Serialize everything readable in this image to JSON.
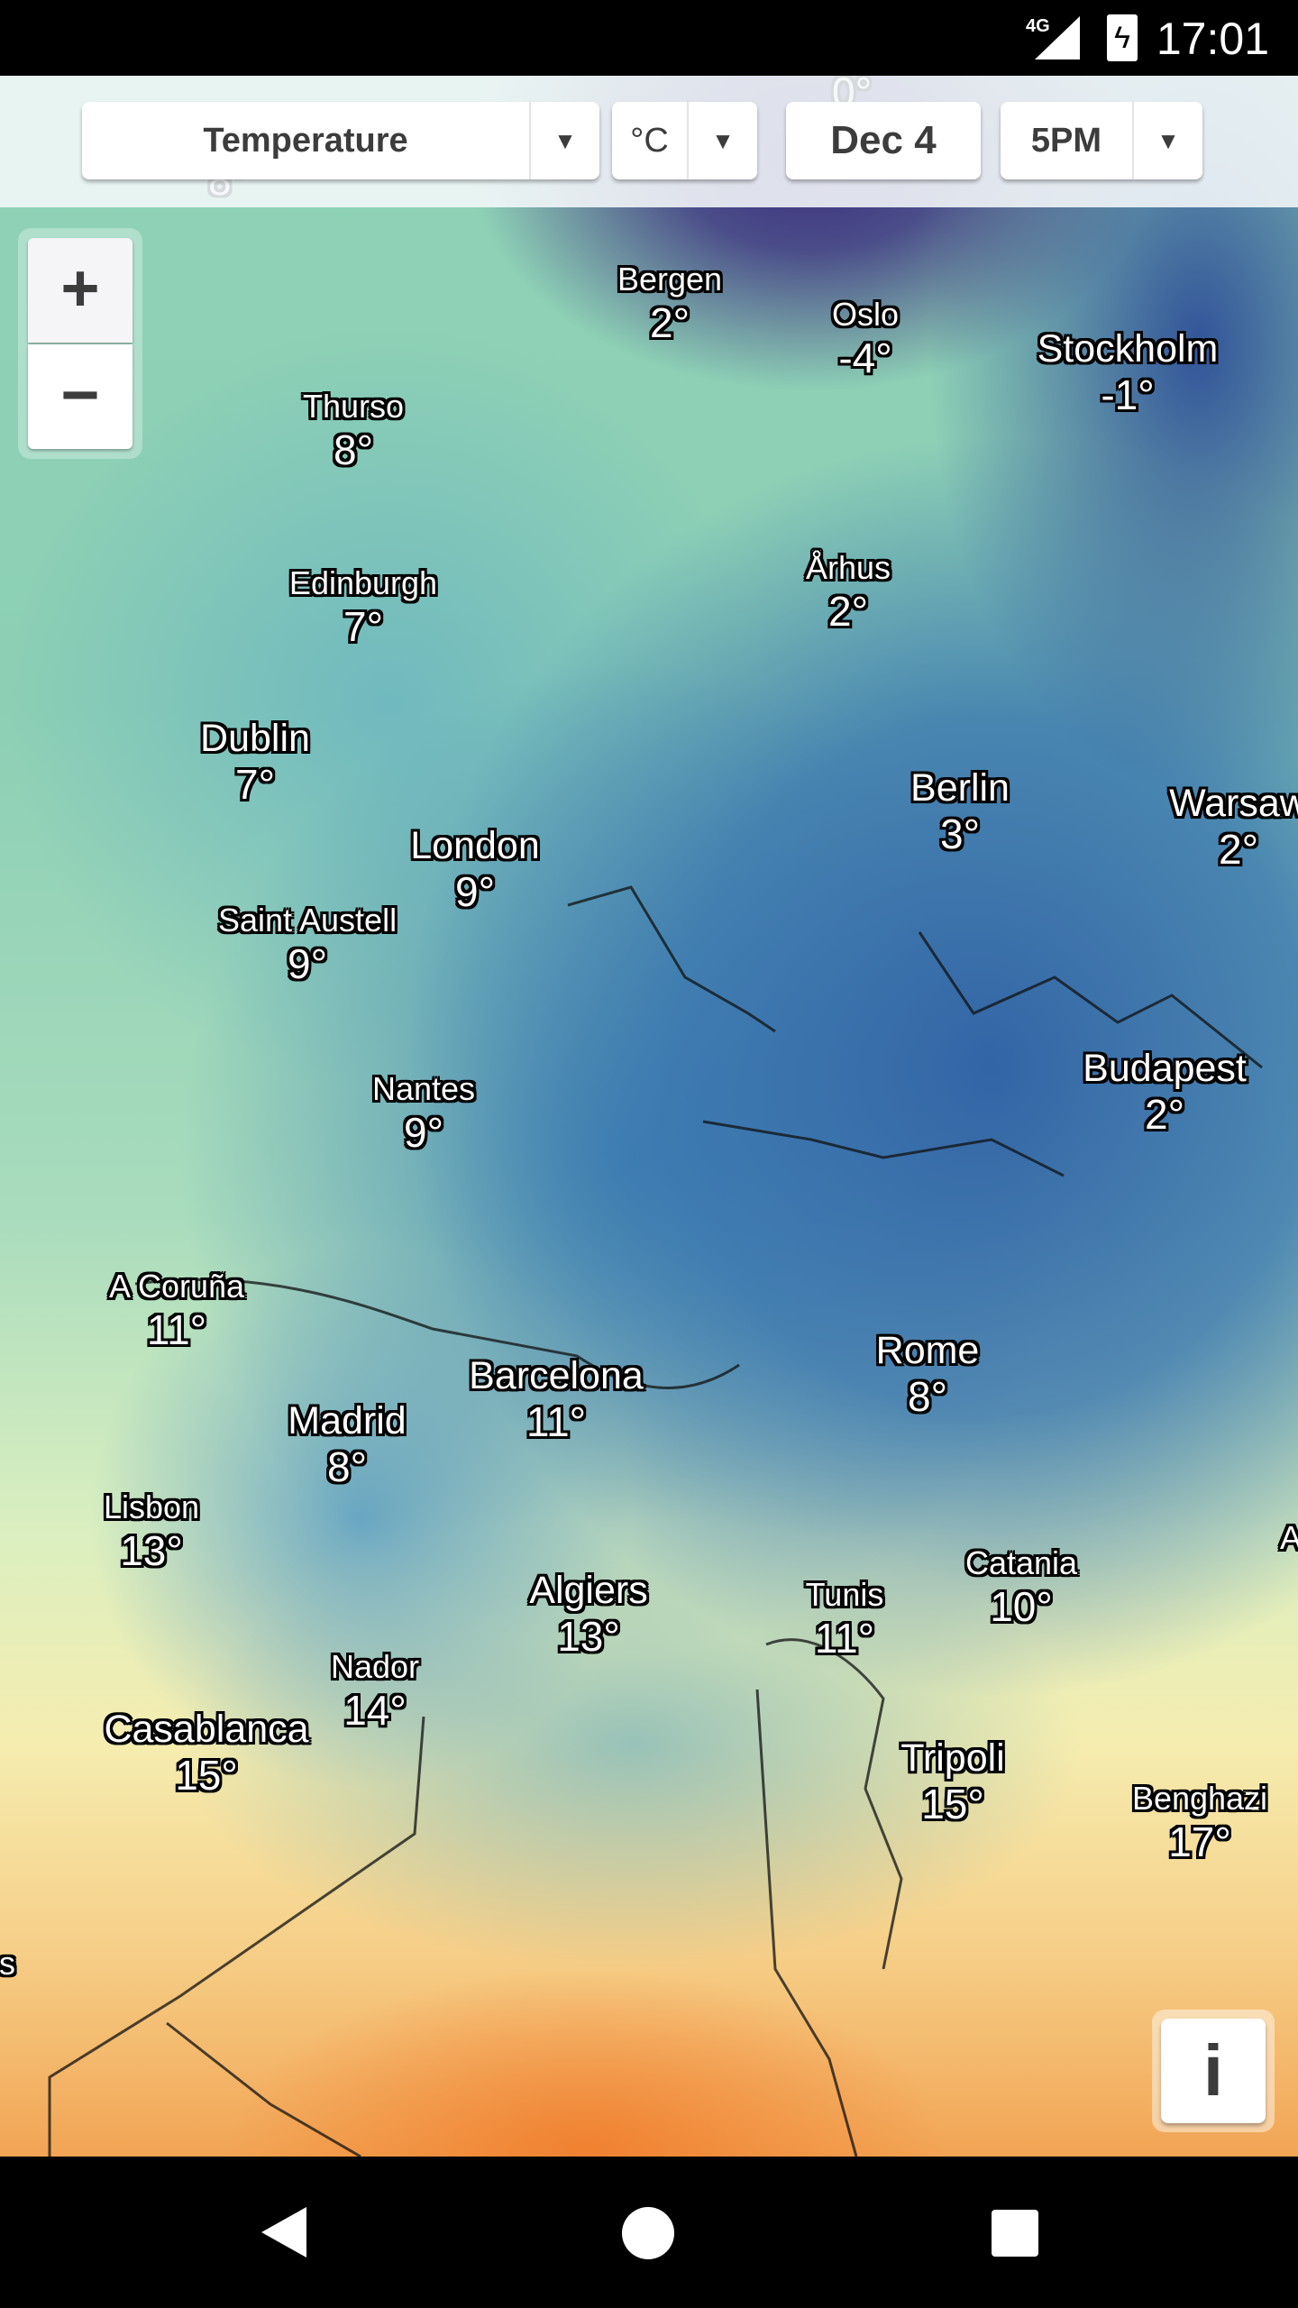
{
  "status_bar": {
    "network": "4G",
    "time": "17:01",
    "icons": [
      "signal-icon",
      "battery-charging-icon"
    ]
  },
  "toolbar": {
    "layer": "Temperature",
    "unit": "°C",
    "date": "Dec 4",
    "time": "5PM"
  },
  "zoom": {
    "in": "+",
    "out": "−"
  },
  "info_button": "i",
  "colors": {
    "cold": "#3a2c7e",
    "mid": "#3d7fb8",
    "mild": "#8fd2b6",
    "warm": "#f5edb0",
    "hot": "#f2a454"
  },
  "labels": [
    {
      "name": "",
      "temp": "0°"
    },
    {
      "name": "",
      "temp": "8°"
    },
    {
      "name": "Bergen",
      "temp": "2°"
    },
    {
      "name": "Oslo",
      "temp": "-4°"
    },
    {
      "name": "Stockholm",
      "temp": "-1°"
    },
    {
      "name": "Thurso",
      "temp": "8°"
    },
    {
      "name": "Edinburgh",
      "temp": "7°"
    },
    {
      "name": "Århus",
      "temp": "2°"
    },
    {
      "name": "Dublin",
      "temp": "7°"
    },
    {
      "name": "Berlin",
      "temp": "3°"
    },
    {
      "name": "Warsaw",
      "temp": "2°"
    },
    {
      "name": "London",
      "temp": "9°"
    },
    {
      "name": "Saint Austell",
      "temp": "9°"
    },
    {
      "name": "Budapest",
      "temp": "2°"
    },
    {
      "name": "Nantes",
      "temp": "9°"
    },
    {
      "name": "A Coruña",
      "temp": "11°"
    },
    {
      "name": "Barcelona",
      "temp": "11°"
    },
    {
      "name": "Rome",
      "temp": "8°"
    },
    {
      "name": "Madrid",
      "temp": "8°"
    },
    {
      "name": "Lisbon",
      "temp": "13°"
    },
    {
      "name": "Catania",
      "temp": "10°"
    },
    {
      "name": "Algiers",
      "temp": "13°"
    },
    {
      "name": "Tunis",
      "temp": "11°"
    },
    {
      "name": "Nador",
      "temp": "14°"
    },
    {
      "name": "Casablanca",
      "temp": "15°"
    },
    {
      "name": "Tripoli",
      "temp": "15°"
    },
    {
      "name": "Benghazi",
      "temp": "17°"
    },
    {
      "name": "s",
      "temp": ""
    },
    {
      "name": "A",
      "temp": ""
    }
  ]
}
